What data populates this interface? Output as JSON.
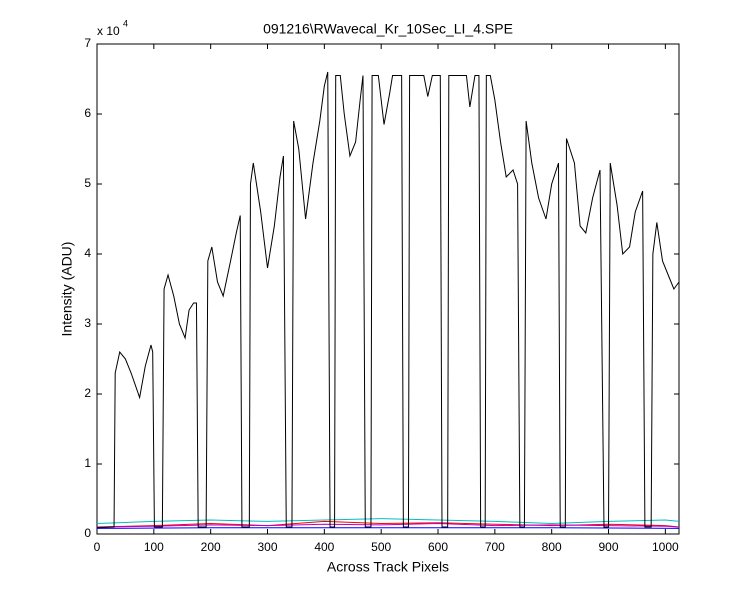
{
  "chart_data": {
    "type": "line",
    "title": "091216\\RWavecal_Kr_10Sec_LI_4.SPE",
    "x_label": "Across Track Pixels",
    "y_label": "Intensity (ADU)",
    "y_exponent_label": "x 10",
    "y_exponent_power": "4",
    "xlim": [
      0,
      1024
    ],
    "ylim": [
      0,
      7
    ],
    "xticks": [
      0,
      100,
      200,
      300,
      400,
      500,
      600,
      700,
      800,
      900,
      1000
    ],
    "yticks": [
      0,
      1,
      2,
      3,
      4,
      5,
      6,
      7
    ],
    "series": [
      {
        "name": "cyan",
        "color": "#00bfbf",
        "x": [
          0,
          100,
          200,
          300,
          400,
          500,
          600,
          700,
          800,
          900,
          1000,
          1024
        ],
        "values": [
          0.15,
          0.18,
          0.2,
          0.18,
          0.2,
          0.22,
          0.2,
          0.18,
          0.15,
          0.18,
          0.2,
          0.18
        ]
      },
      {
        "name": "red",
        "color": "#ff0000",
        "x": [
          0,
          100,
          200,
          300,
          400,
          500,
          600,
          700,
          800,
          900,
          1000,
          1024
        ],
        "values": [
          0.1,
          0.12,
          0.15,
          0.12,
          0.18,
          0.15,
          0.16,
          0.14,
          0.12,
          0.14,
          0.12,
          0.1
        ]
      },
      {
        "name": "magenta",
        "color": "#bf00bf",
        "x": [
          0,
          100,
          200,
          300,
          400,
          500,
          600,
          700,
          800,
          900,
          1000,
          1024
        ],
        "values": [
          0.1,
          0.11,
          0.13,
          0.12,
          0.14,
          0.13,
          0.15,
          0.12,
          0.13,
          0.12,
          0.11,
          0.1
        ]
      },
      {
        "name": "blue",
        "color": "#0000ff",
        "x": [
          0,
          200,
          400,
          600,
          800,
          1024
        ],
        "values": [
          0.08,
          0.09,
          0.09,
          0.09,
          0.09,
          0.08
        ]
      },
      {
        "name": "black",
        "color": "#000000",
        "x": [
          0,
          30,
          32,
          40,
          50,
          60,
          75,
          85,
          95,
          98,
          101,
          115,
          118,
          125,
          135,
          145,
          155,
          162,
          170,
          175,
          178,
          192,
          195,
          202,
          212,
          222,
          235,
          245,
          252,
          255,
          268,
          270,
          275,
          288,
          300,
          312,
          322,
          328,
          333,
          343,
          346,
          355,
          367,
          380,
          392,
          400,
          406,
          410,
          418,
          420,
          428,
          435,
          445,
          455,
          463,
          468,
          472,
          482,
          484,
          495,
          500,
          505,
          515,
          520,
          536,
          539,
          548,
          550,
          575,
          582,
          590,
          604,
          607,
          617,
          619,
          650,
          656,
          665,
          672,
          675,
          683,
          685,
          692,
          700,
          710,
          720,
          732,
          740,
          744,
          752,
          755,
          765,
          777,
          790,
          800,
          812,
          815,
          824,
          826,
          840,
          850,
          860,
          872,
          885,
          892,
          900,
          903,
          915,
          925,
          937,
          947,
          960,
          964,
          975,
          978,
          985,
          995,
          1005,
          1015,
          1024
        ],
        "values": [
          0.09,
          0.1,
          2.3,
          2.6,
          2.5,
          2.3,
          1.95,
          2.4,
          2.7,
          2.6,
          0.1,
          0.1,
          3.5,
          3.7,
          3.4,
          3.0,
          2.8,
          3.2,
          3.3,
          3.3,
          0.1,
          0.1,
          3.9,
          4.1,
          3.6,
          3.4,
          3.9,
          4.3,
          4.55,
          0.1,
          0.1,
          5.0,
          5.3,
          4.6,
          3.8,
          4.4,
          5.1,
          5.4,
          0.1,
          0.1,
          5.9,
          5.5,
          4.5,
          5.3,
          5.9,
          6.4,
          6.6,
          0.1,
          0.1,
          6.55,
          6.55,
          6.0,
          5.4,
          5.6,
          6.2,
          6.55,
          0.1,
          0.1,
          6.55,
          6.55,
          6.2,
          5.85,
          6.3,
          6.55,
          6.55,
          0.1,
          0.1,
          6.55,
          6.55,
          6.25,
          6.55,
          6.55,
          0.1,
          0.1,
          6.55,
          6.55,
          6.1,
          6.55,
          6.55,
          0.1,
          0.1,
          6.55,
          6.55,
          6.2,
          5.6,
          5.1,
          5.2,
          5.0,
          0.1,
          0.1,
          5.9,
          5.3,
          4.8,
          4.5,
          5.0,
          5.3,
          0.1,
          0.1,
          5.65,
          5.3,
          4.4,
          4.3,
          4.8,
          5.2,
          0.1,
          0.1,
          5.3,
          4.7,
          4.0,
          4.1,
          4.6,
          4.9,
          0.1,
          0.1,
          4.0,
          4.45,
          3.9,
          3.7,
          3.5,
          3.6
        ]
      }
    ]
  }
}
